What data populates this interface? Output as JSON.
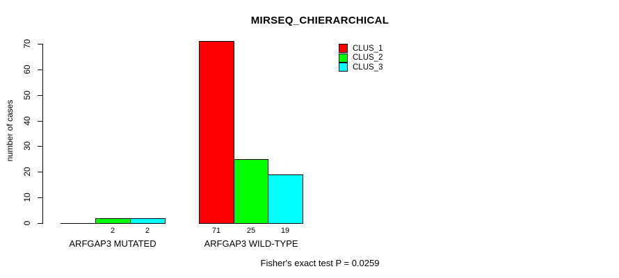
{
  "chart_data": {
    "type": "bar",
    "title": "MIRSEQ_CHIERARCHICAL",
    "ylabel": "number of cases",
    "xlabel": "",
    "ylim": [
      0,
      70
    ],
    "yticks": [
      0,
      10,
      20,
      30,
      40,
      50,
      60,
      70
    ],
    "grid": false,
    "legend_position": "top-right",
    "categories": [
      "ARFGAP3 MUTATED",
      "ARFGAP3 WILD-TYPE"
    ],
    "series": [
      {
        "name": "CLUS_1",
        "color": "#ff0000",
        "values": [
          0,
          71
        ]
      },
      {
        "name": "CLUS_2",
        "color": "#00ff00",
        "values": [
          2,
          25
        ]
      },
      {
        "name": "CLUS_3",
        "color": "#00ffff",
        "values": [
          2,
          19
        ]
      }
    ],
    "bar_value_labels": [
      [
        "",
        "2",
        "2"
      ],
      [
        "71",
        "25",
        "19"
      ]
    ],
    "annotation": "Fisher's exact test P = 0.0259"
  }
}
